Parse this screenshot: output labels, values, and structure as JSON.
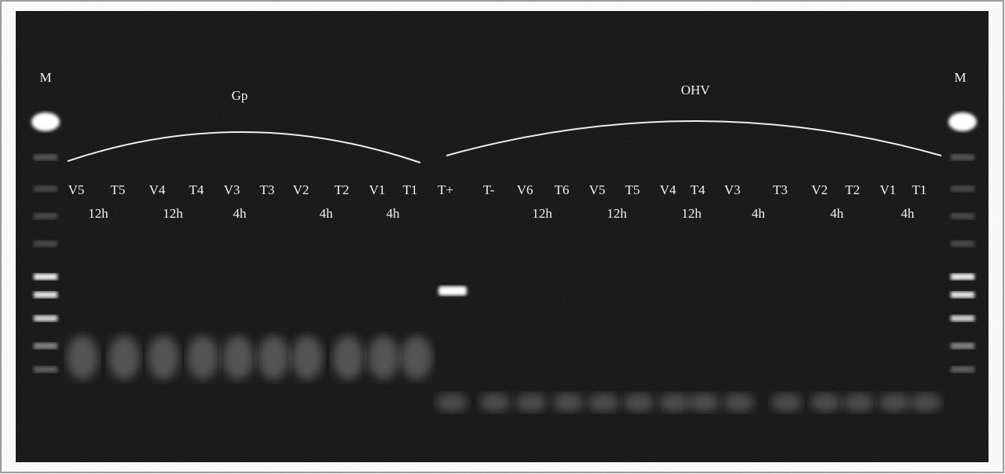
{
  "markers": {
    "left": "M",
    "right": "M"
  },
  "groups": [
    {
      "label": "Gp",
      "lanes": [
        "V5",
        "T5",
        "V4",
        "T4",
        "V3",
        "T3",
        "V2",
        "T2",
        "V1",
        "T1"
      ],
      "times": [
        "12h",
        "12h",
        "4h",
        "4h",
        "4h"
      ]
    },
    {
      "label": "OHV",
      "lanes": [
        "T+",
        "T-",
        "V6",
        "T6",
        "V5",
        "T5",
        "V4",
        "T4",
        "V3",
        "T3",
        "V2",
        "T2",
        "V1",
        "T1"
      ],
      "times": [
        "12h",
        "12h",
        "12h",
        "4h",
        "4h",
        "4h"
      ]
    }
  ]
}
